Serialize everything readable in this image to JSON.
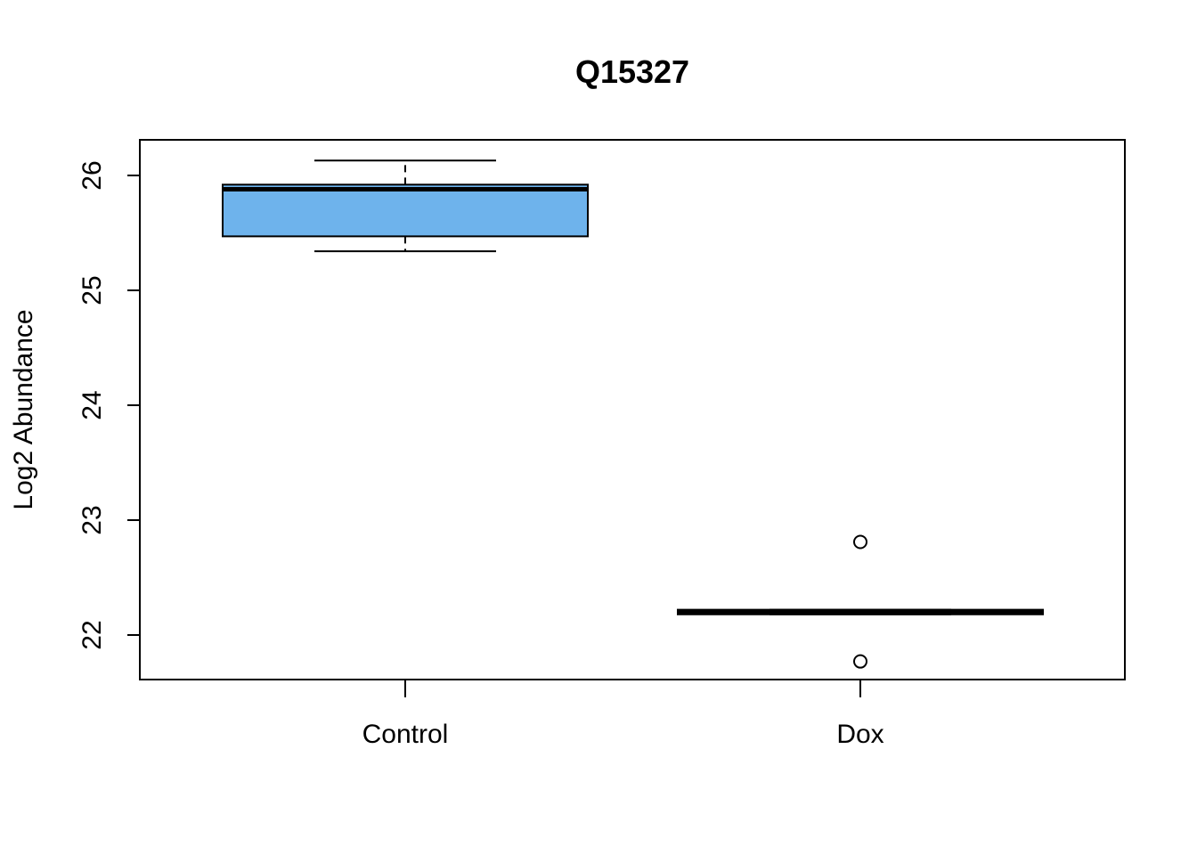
{
  "chart_data": {
    "type": "boxplot",
    "title": "Q15327",
    "xlabel": "",
    "ylabel": "Log2 Abundance",
    "ylim": [
      21.6,
      26.3
    ],
    "yticks": [
      "22",
      "23",
      "24",
      "25",
      "26"
    ],
    "categories": [
      "Control",
      "Dox"
    ],
    "boxes": [
      {
        "category": "Control",
        "whisker_low": 25.34,
        "q1": 25.47,
        "median": 25.88,
        "q3": 25.92,
        "whisker_high": 26.13,
        "outliers": [],
        "fill": "#6EB3EC"
      },
      {
        "category": "Dox",
        "whisker_low": 22.18,
        "q1": 22.18,
        "median": 22.2,
        "q3": 22.22,
        "whisker_high": 22.22,
        "outliers": [
          22.81,
          21.77
        ],
        "fill": "#8B1A1A"
      }
    ],
    "grid": false,
    "legend": "none"
  }
}
